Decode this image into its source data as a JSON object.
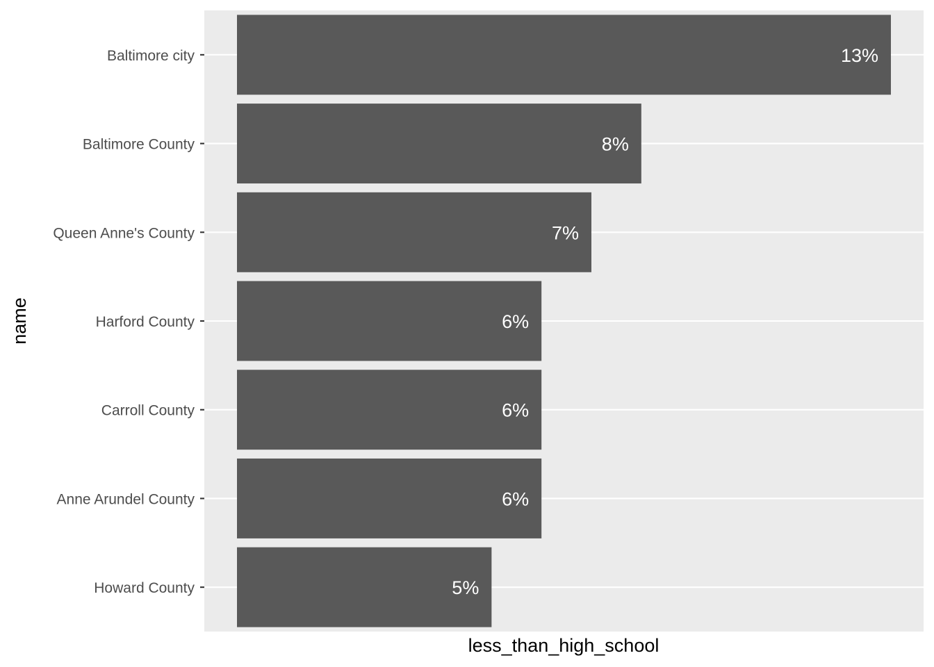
{
  "chart_data": {
    "type": "bar",
    "orientation": "horizontal",
    "xlabel": "less_than_high_school",
    "ylabel": "name",
    "categories": [
      "Baltimore city",
      "Baltimore County",
      "Queen Anne's County",
      "Harford County",
      "Carroll County",
      "Anne Arundel County",
      "Howard County"
    ],
    "values": [
      0.131,
      0.081,
      0.071,
      0.061,
      0.061,
      0.061,
      0.051
    ],
    "data_labels": [
      "13%",
      "8%",
      "7%",
      "6%",
      "6%",
      "6%",
      "5%"
    ],
    "x_tick_labels": [],
    "grid": true,
    "legend": "none",
    "colors": {
      "bar": "#595959",
      "panel": "#ebebeb",
      "grid": "#ffffff",
      "data_label": "#ffffff",
      "tick_label": "#4d4d4d",
      "axis_title": "#000000"
    }
  }
}
